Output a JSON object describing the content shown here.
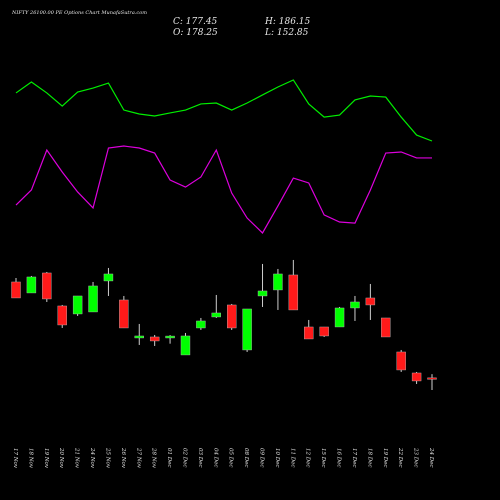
{
  "chart_data": {
    "type": "candlestick",
    "title": "NIFTY 26100.00 PE Options Chart MunafaSutra.com",
    "ohlc_labels": [
      "C: 177.45",
      "H: 186.15",
      "O: 178.25",
      "L: 152.85"
    ],
    "categories": [
      "17 Nov",
      "18 Nov",
      "19 Nov",
      "20 Nov",
      "21 Nov",
      "24 Nov",
      "25 Nov",
      "26 Nov",
      "27 Nov",
      "28 Nov",
      "01 Dec",
      "02 Dec",
      "03 Dec",
      "04 Dec",
      "05 Dec",
      "08 Dec",
      "09 Dec",
      "10 Dec",
      "11 Dec",
      "12 Dec",
      "15 Dec",
      "16 Dec",
      "17 Dec",
      "18 Dec",
      "19 Dec",
      "22 Dec",
      "23 Dec",
      "24 Dec"
    ],
    "open": [
      379.6,
      356.5,
      398.5,
      329.2,
      312.4,
      316.6,
      381.7,
      341.8,
      262.0,
      264.1,
      262.0,
      226.3,
      283.0,
      306.1,
      331.3,
      236.8,
      350.2,
      362.8,
      394.3,
      285.1,
      285.1,
      285.1,
      325.0,
      346.0,
      304.0,
      232.6,
      188.5,
      178.25
    ],
    "high": [
      388.0,
      392.2,
      400.6,
      331.3,
      350.2,
      379.6,
      409.0,
      350.2,
      291.4,
      268.3,
      268.0,
      272.5,
      304.0,
      352.3,
      333.4,
      322.9,
      417.4,
      406.9,
      425.8,
      299.8,
      285.1,
      327.1,
      350.2,
      375.4,
      304.0,
      236.8,
      190.6,
      186.15
    ],
    "low": [
      346.0,
      356.5,
      337.6,
      283.0,
      308.2,
      316.6,
      350.2,
      283.0,
      247.3,
      245.2,
      250.0,
      226.3,
      278.8,
      304.0,
      278.8,
      232.6,
      327.1,
      320.8,
      320.8,
      259.9,
      264.1,
      285.1,
      297.7,
      299.8,
      264.1,
      190.6,
      165.4,
      152.85
    ],
    "close": [
      346.0,
      390.1,
      343.9,
      289.3,
      350.2,
      371.2,
      396.4,
      283.0,
      266.2,
      255.7,
      266.0,
      266.2,
      297.7,
      314.5,
      283.0,
      322.9,
      360.7,
      396.4,
      320.8,
      259.9,
      266.2,
      325.0,
      337.6,
      331.3,
      264.1,
      194.8,
      171.7,
      177.45
    ],
    "ylim": [
      150,
      440
    ],
    "up_color": "#00ff00",
    "down_color": "#ff1a1a",
    "indicators": {
      "ylim": [
        0,
        100
      ],
      "series": [
        {
          "color": "#00ee00",
          "values": [
            81.7,
            87.8,
            81.7,
            74.4,
            82.2,
            84.4,
            87.2,
            72.2,
            70,
            68.9,
            70.6,
            72.2,
            75.6,
            76.1,
            72.2,
            76.1,
            80.6,
            85,
            88.9,
            75.6,
            68.3,
            69.4,
            77.8,
            80,
            79.4,
            68.3,
            58.3,
            55
          ]
        },
        {
          "color": "#dd00dd",
          "values": [
            19.4,
            27.8,
            50,
            37.8,
            26.7,
            17.8,
            51.1,
            52.2,
            51.1,
            48.3,
            33.3,
            29.4,
            35,
            50,
            26.1,
            12.2,
            3.9,
            18.9,
            34.4,
            31.7,
            13.9,
            10,
            9.4,
            27.8,
            48.3,
            48.9,
            45.6,
            45.6
          ]
        }
      ]
    }
  }
}
